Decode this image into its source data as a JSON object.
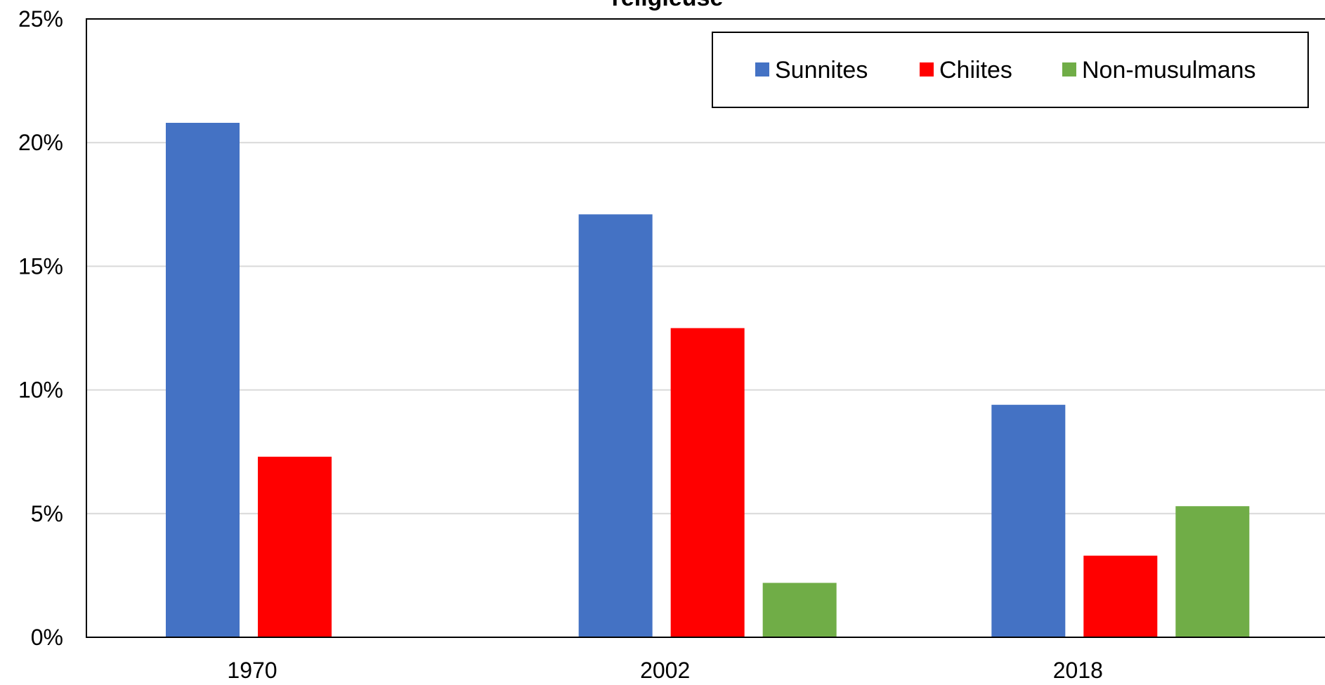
{
  "chart_data": {
    "type": "bar",
    "title": "religieuse",
    "categories": [
      "1970",
      "2002",
      "2018"
    ],
    "series": [
      {
        "name": "Sunnites",
        "values": [
          20.8,
          17.1,
          9.4
        ],
        "color": "#4472C4"
      },
      {
        "name": "Chiites",
        "values": [
          7.3,
          12.5,
          3.3
        ],
        "color": "#FF0000"
      },
      {
        "name": "Non-musulmans",
        "values": [
          null,
          2.2,
          5.3
        ],
        "color": "#70AD47"
      }
    ],
    "xlabel": "",
    "ylabel": "",
    "ylim": [
      0,
      25
    ],
    "yticks": [
      "0%",
      "5%",
      "10%",
      "15%",
      "20%",
      "25%"
    ],
    "grid": true,
    "legend_position": "top-right"
  }
}
